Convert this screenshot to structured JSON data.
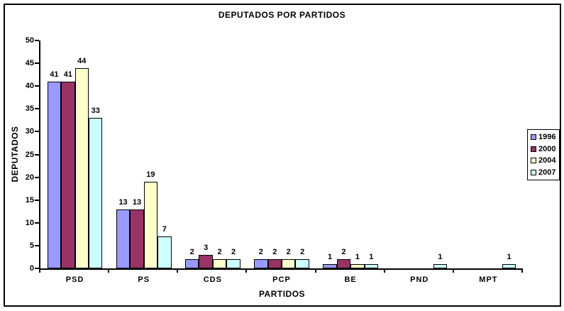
{
  "window": {
    "background_color": "#FFFFFF",
    "border_color": "#000000"
  },
  "chart_data": {
    "type": "bar",
    "title": "DEPUTADOS POR PARTIDOS",
    "xlabel": "PARTIDOS",
    "ylabel": "DEPUTADOS",
    "categories": [
      "PSD",
      "PS",
      "CDS",
      "PCP",
      "BE",
      "PND",
      "MPT"
    ],
    "series": [
      {
        "name": "1996",
        "color": "#9999FF",
        "values": [
          41,
          13,
          2,
          2,
          1,
          0,
          0
        ]
      },
      {
        "name": "2000",
        "color": "#993366",
        "values": [
          41,
          13,
          3,
          2,
          2,
          0,
          0
        ]
      },
      {
        "name": "2004",
        "color": "#FFFFCC",
        "values": [
          44,
          19,
          2,
          2,
          1,
          0,
          0
        ]
      },
      {
        "name": "2007",
        "color": "#CCFFFF",
        "values": [
          33,
          7,
          2,
          2,
          1,
          1,
          1
        ]
      }
    ],
    "ylim": [
      0,
      50
    ],
    "ytick_step": 5,
    "yticks": [
      0,
      5,
      10,
      15,
      20,
      25,
      30,
      35,
      40,
      45,
      50
    ],
    "grid": false,
    "legend_position": "right",
    "bar_value_labels_shown": true,
    "zero_value_bars_hidden": true
  }
}
